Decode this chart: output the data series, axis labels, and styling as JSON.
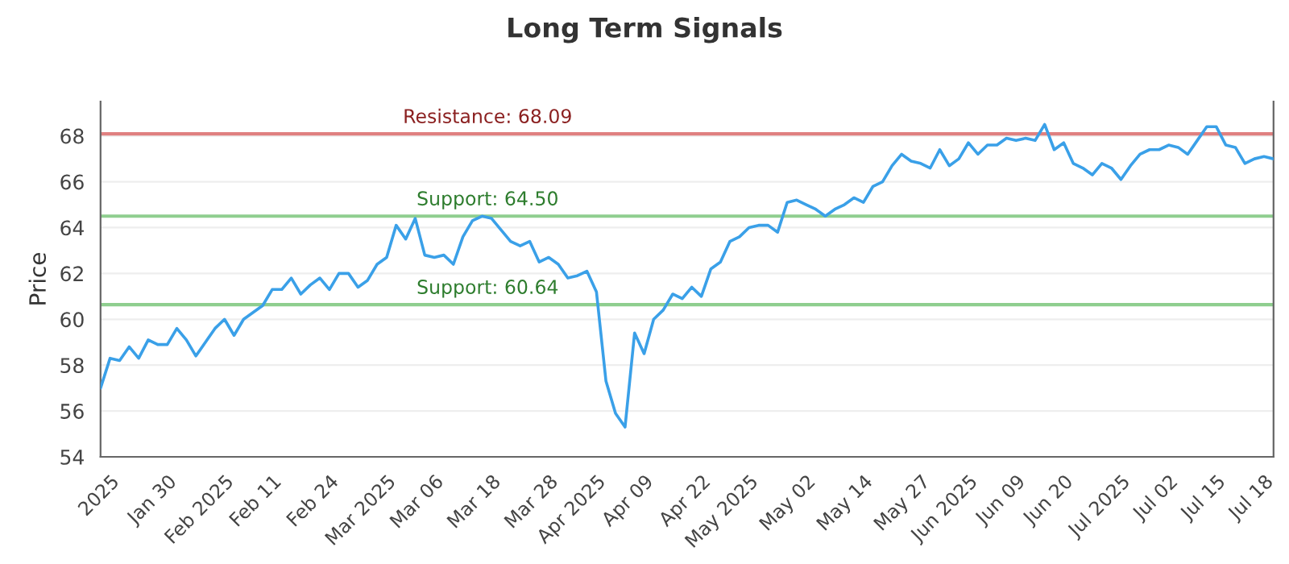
{
  "chart_data": {
    "type": "line",
    "title": "Long Term Signals",
    "ylabel": "Price",
    "categories": [
      null,
      "2025",
      null,
      null,
      null,
      null,
      null,
      "Jan 30",
      null,
      null,
      null,
      null,
      null,
      "Feb 2025",
      null,
      null,
      null,
      null,
      "Feb 11",
      null,
      null,
      null,
      null,
      null,
      "Feb 24",
      null,
      null,
      null,
      null,
      null,
      "Mar 2025",
      null,
      null,
      null,
      null,
      "Mar 06",
      null,
      null,
      null,
      null,
      null,
      "Mar 18",
      null,
      null,
      null,
      null,
      null,
      "Mar 28",
      null,
      null,
      null,
      null,
      "Apr 2025",
      null,
      null,
      null,
      null,
      "Apr 09",
      null,
      null,
      null,
      null,
      null,
      "Apr 22",
      null,
      null,
      null,
      null,
      "May 2025",
      null,
      null,
      null,
      null,
      null,
      "May 02",
      null,
      null,
      null,
      null,
      null,
      "May 14",
      null,
      null,
      null,
      null,
      null,
      "May 27",
      null,
      null,
      null,
      null,
      "Jun 2025",
      null,
      null,
      null,
      null,
      "Jun 09",
      null,
      null,
      null,
      null,
      "Jun 20",
      null,
      null,
      null,
      null,
      null,
      "Jul 2025",
      null,
      null,
      null,
      null,
      "Jul 02",
      null,
      null,
      null,
      null,
      "Jul 15",
      null,
      null,
      null,
      null,
      "Jul 18",
      null
    ],
    "series": [
      {
        "color": "#3aa0e8",
        "values": [
          57.0,
          58.3,
          58.2,
          58.8,
          58.3,
          59.1,
          58.9,
          58.9,
          59.6,
          59.1,
          58.4,
          59.0,
          59.6,
          60.0,
          59.3,
          60.0,
          60.3,
          60.6,
          61.3,
          61.3,
          61.8,
          61.1,
          61.5,
          61.8,
          61.3,
          62.0,
          62.0,
          61.4,
          61.7,
          62.4,
          62.7,
          64.1,
          63.5,
          64.4,
          62.8,
          62.7,
          62.8,
          62.4,
          63.6,
          64.3,
          64.5,
          64.4,
          63.9,
          63.4,
          63.2,
          63.4,
          62.5,
          62.7,
          62.4,
          61.8,
          61.9,
          62.1,
          61.2,
          57.3,
          55.9,
          55.3,
          59.4,
          58.5,
          60.0,
          60.4,
          61.1,
          60.9,
          61.4,
          61.0,
          62.2,
          62.5,
          63.4,
          63.6,
          64.0,
          64.1,
          64.1,
          63.8,
          65.1,
          65.2,
          65.0,
          64.8,
          64.5,
          64.8,
          65.0,
          65.3,
          65.1,
          65.8,
          66.0,
          66.7,
          67.2,
          66.9,
          66.8,
          66.6,
          67.4,
          66.7,
          67.0,
          67.7,
          67.2,
          67.6,
          67.6,
          67.9,
          67.8,
          67.9,
          67.8,
          68.5,
          67.4,
          67.7,
          66.8,
          66.6,
          66.3,
          66.8,
          66.6,
          66.1,
          66.7,
          67.2,
          67.4,
          67.4,
          67.6,
          67.5,
          67.2,
          67.8,
          68.4,
          68.4,
          67.6,
          67.5,
          66.8,
          67.0,
          67.1,
          67.0
        ]
      }
    ],
    "ylim": [
      54,
      69.5
    ],
    "yticks": [
      54,
      56,
      58,
      60,
      62,
      64,
      66,
      68
    ],
    "ref_lines": [
      {
        "axis": "y",
        "value": 68.09,
        "label": "Resistance: 68.09",
        "color": "#e08080"
      },
      {
        "axis": "y",
        "value": 64.5,
        "label": "Support: 64.50",
        "color": "#8fce8f"
      },
      {
        "axis": "y",
        "value": 60.64,
        "label": "Support: 60.64",
        "color": "#8fce8f"
      }
    ],
    "grid": "y",
    "marker": "none",
    "line_style": "solid"
  }
}
